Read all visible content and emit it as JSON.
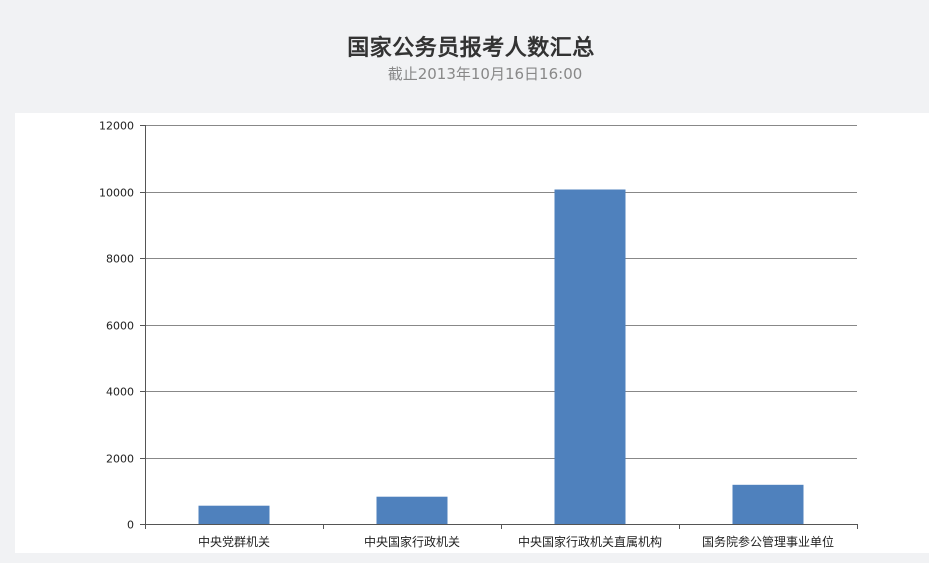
{
  "header": {
    "title": "国家公务员报考人数汇总",
    "subtitle": "截止2013年10月16日16:00"
  },
  "chart_data": {
    "type": "bar",
    "title": "国家公务员报考人数汇总",
    "subtitle": "截止2013年10月16日16:00",
    "categories": [
      "中央党群机关",
      "中央国家行政机关",
      "中央国家行政机关直属机构",
      "国务院参公管理事业单位"
    ],
    "values": [
      550,
      820,
      10060,
      1180
    ],
    "ylim": [
      0,
      12000
    ],
    "yticks": [
      0,
      2000,
      4000,
      6000,
      8000,
      10000,
      12000
    ],
    "grid": true,
    "legend": "none",
    "bar_color": "#4f81bd",
    "grid_color": "#888888"
  }
}
